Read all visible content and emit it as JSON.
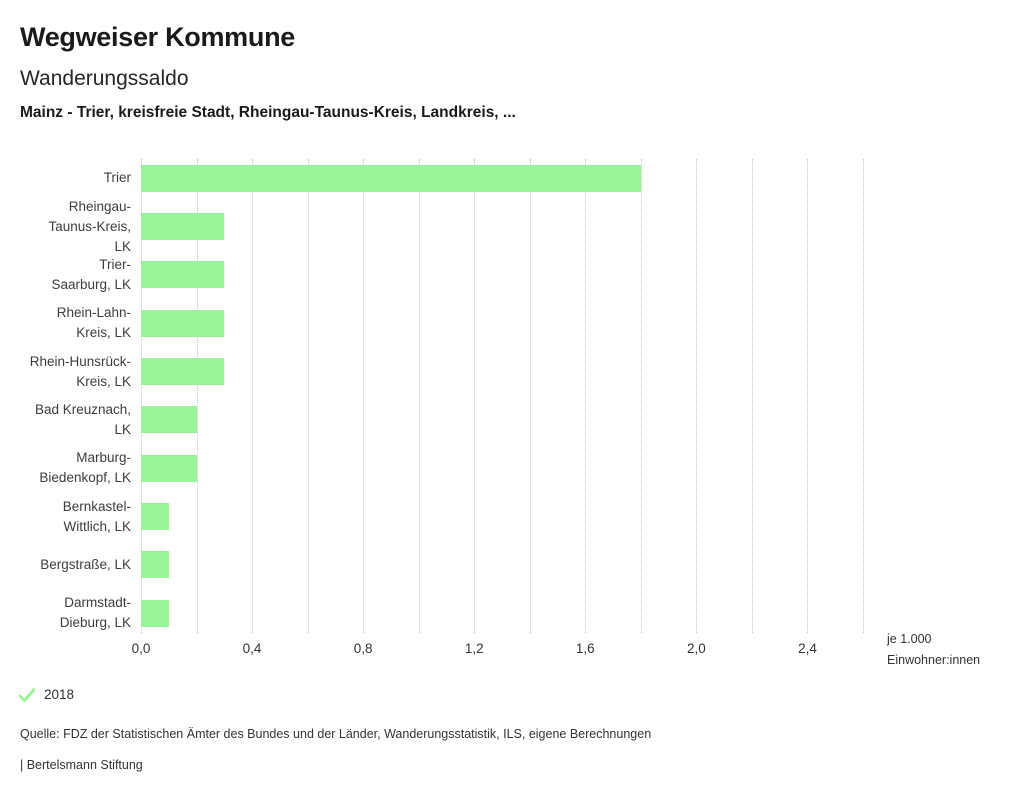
{
  "header": {
    "title": "Wegweiser Kommune",
    "subtitle": "Wanderungssaldo",
    "selection": "Mainz - Trier, kreisfreie Stadt, Rheingau-Taunus-Kreis, Landkreis, ..."
  },
  "chart_data": {
    "type": "bar",
    "orientation": "horizontal",
    "title": "Wanderungssaldo",
    "unit": "je 1.000 Einwohner:innen",
    "unit_label_lines": [
      "je 1.000",
      "Einwohner:innen"
    ],
    "series_name": "2018",
    "categories": [
      "Trier",
      "Rheingau-Taunus-Kreis, LK",
      "Trier-Saarburg, LK",
      "Rhein-Lahn-Kreis, LK",
      "Rhein-Hunsrück-Kreis, LK",
      "Bad Kreuznach, LK",
      "Marburg-Biedenkopf, LK",
      "Bernkastel-Wittlich, LK",
      "Bergstraße, LK",
      "Darmstadt-Dieburg, LK"
    ],
    "category_label_lines": [
      [
        "Trier"
      ],
      [
        "Rheingau-",
        "Taunus-Kreis,",
        "LK"
      ],
      [
        "Trier-",
        "Saarburg, LK"
      ],
      [
        "Rhein-Lahn-",
        "Kreis, LK"
      ],
      [
        "Rhein-Hunsrück-",
        "Kreis, LK"
      ],
      [
        "Bad Kreuznach,",
        "LK"
      ],
      [
        "Marburg-",
        "Biedenkopf, LK"
      ],
      [
        "Bernkastel-",
        "Wittlich, LK"
      ],
      [
        "Bergstraße, LK"
      ],
      [
        "Darmstadt-",
        "Dieburg, LK"
      ]
    ],
    "values": [
      1.8,
      0.3,
      0.3,
      0.3,
      0.3,
      0.2,
      0.2,
      0.1,
      0.1,
      0.1
    ],
    "xlim": [
      0,
      2.6
    ],
    "tick_step": 0.4,
    "grid_step": 0.2,
    "tick_labels": [
      "0,0",
      "0,4",
      "0,8",
      "1,2",
      "1,6",
      "2,0",
      "2,4"
    ],
    "grid": true,
    "grid_style": "vertical-dotted",
    "legend_position": "bottom-left",
    "bar_color": "#98f598",
    "grid_color": "#c6c6c6"
  },
  "legend": {
    "items": [
      {
        "label": "2018",
        "checked": true
      }
    ]
  },
  "footer": {
    "source": "Quelle: FDZ der Statistischen Ämter des Bundes und der Länder, Wanderungsstatistik, ILS, eigene Berechnungen",
    "branding": "| Bertelsmann Stiftung"
  },
  "colors": {
    "accent_green": "#98f598",
    "text_dark": "#1a1a1a",
    "text_medium": "#3d3d3d",
    "grid": "#c6c6c6"
  }
}
